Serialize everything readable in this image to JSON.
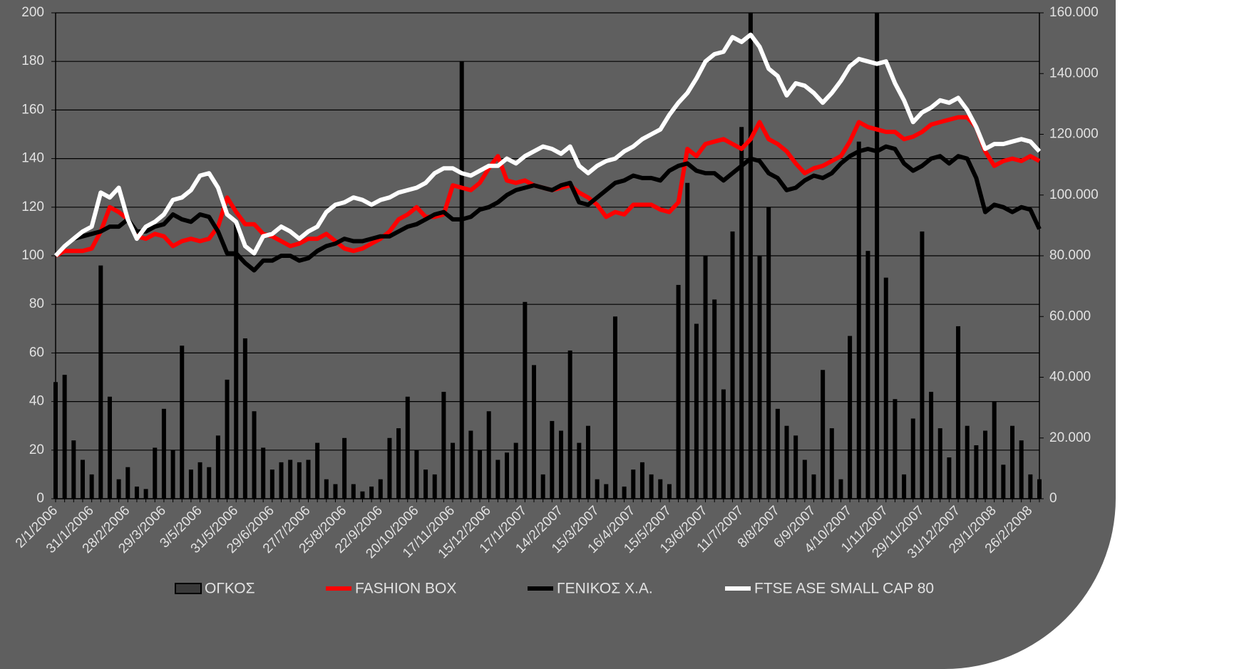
{
  "chart_data": {
    "type": "combo",
    "categories": [
      "2/1/2006",
      null,
      null,
      null,
      "31/1/2006",
      null,
      null,
      null,
      "28/2/2006",
      null,
      null,
      null,
      "29/3/2006",
      null,
      null,
      null,
      "3/5/2006",
      null,
      null,
      null,
      "31/5/2006",
      null,
      null,
      null,
      "29/6/2006",
      null,
      null,
      null,
      "27/7/2006",
      null,
      null,
      null,
      "25/8/2006",
      null,
      null,
      null,
      "22/9/2006",
      null,
      null,
      null,
      "20/10/2006",
      null,
      null,
      null,
      "17/11/2006",
      null,
      null,
      null,
      "15/12/2006",
      null,
      null,
      null,
      "17/1/2007",
      null,
      null,
      null,
      "14/2/2007",
      null,
      null,
      null,
      "15/3/2007",
      null,
      null,
      null,
      "16/4/2007",
      null,
      null,
      null,
      "15/5/2007",
      null,
      null,
      null,
      "13/6/2007",
      null,
      null,
      null,
      "11/7/2007",
      null,
      null,
      null,
      "8/8/2007",
      null,
      null,
      null,
      "6/9/2007",
      null,
      null,
      null,
      "4/10/2007",
      null,
      null,
      null,
      "1/11/2007",
      null,
      null,
      null,
      "29/11/2007",
      null,
      null,
      null,
      "31/12/2007",
      null,
      null,
      null,
      "29/1/2008",
      null,
      null,
      null,
      "26/2/2008",
      null
    ],
    "series": [
      {
        "name": "ΟΓΚΟΣ",
        "type": "bar",
        "axis": "y2",
        "color": "#000000",
        "values": [
          38400,
          40800,
          19200,
          12800,
          8000,
          76800,
          33600,
          6400,
          10400,
          4000,
          3200,
          16800,
          29600,
          16000,
          50400,
          9600,
          12000,
          10400,
          20800,
          39200,
          90400,
          52800,
          28800,
          16800,
          9600,
          12000,
          12800,
          12000,
          12800,
          18400,
          6400,
          4800,
          20000,
          4800,
          2400,
          4000,
          6400,
          20000,
          23200,
          33600,
          16000,
          9600,
          8000,
          35200,
          18400,
          144000,
          22400,
          16000,
          28800,
          12800,
          15200,
          18400,
          64800,
          44000,
          8000,
          25600,
          22400,
          48800,
          18400,
          24000,
          6400,
          4800,
          60000,
          4000,
          9600,
          12000,
          8000,
          6400,
          4800,
          70400,
          104000,
          57600,
          80000,
          65600,
          36000,
          88000,
          122400,
          160000,
          80000,
          96000,
          29600,
          24000,
          20800,
          12800,
          8000,
          42400,
          23200,
          6400,
          53600,
          117600,
          81600,
          160000,
          72800,
          32800,
          8000,
          26400,
          88000,
          35200,
          23200,
          13600,
          56800,
          24000,
          17600,
          22400,
          32000,
          11200,
          24000,
          19200,
          8000,
          6400
        ]
      },
      {
        "name": "FASHION BOX",
        "type": "line",
        "color": "#ff0000",
        "values": [
          100,
          102,
          102,
          102,
          103,
          110,
          120,
          118,
          115,
          108,
          107,
          109,
          108,
          104,
          106,
          107,
          106,
          107,
          112,
          124,
          118,
          113,
          113,
          109,
          108,
          106,
          104,
          105,
          107,
          107,
          109,
          106,
          103,
          102,
          103,
          105,
          107,
          110,
          115,
          117,
          120,
          116,
          116,
          117,
          129,
          128,
          127,
          130,
          136,
          141,
          131,
          130,
          131,
          129,
          128,
          127,
          128,
          129,
          126,
          124,
          121,
          116,
          118,
          117,
          121,
          121,
          121,
          119,
          118,
          122,
          144,
          141,
          146,
          147,
          148,
          146,
          144,
          148,
          155,
          148,
          146,
          143,
          138,
          134,
          136,
          137,
          139,
          141,
          147,
          155,
          153,
          152,
          151,
          151,
          148,
          149,
          151,
          154,
          155,
          156,
          157,
          157,
          153,
          143,
          137,
          139,
          140,
          139,
          141,
          139
        ]
      },
      {
        "name": "ΓΕΝΙΚΟΣ Χ.Α.",
        "type": "line",
        "color": "#000000",
        "values": [
          100,
          104,
          107,
          108,
          109,
          110,
          112,
          112,
          115,
          110,
          110,
          112,
          113,
          117,
          115,
          114,
          117,
          116,
          110,
          101,
          101,
          97,
          94,
          98,
          98,
          100,
          100,
          98,
          99,
          102,
          104,
          105,
          107,
          106,
          106,
          107,
          108,
          108,
          110,
          112,
          113,
          115,
          117,
          118,
          115,
          115,
          116,
          119,
          120,
          122,
          125,
          127,
          128,
          129,
          128,
          127,
          129,
          130,
          122,
          121,
          124,
          127,
          130,
          131,
          133,
          132,
          132,
          131,
          135,
          137,
          138,
          135,
          134,
          134,
          131,
          134,
          137,
          140,
          139,
          134,
          132,
          127,
          128,
          131,
          133,
          132,
          134,
          138,
          141,
          143,
          144,
          143,
          145,
          144,
          138,
          135,
          137,
          140,
          141,
          138,
          141,
          140,
          132,
          118,
          121,
          120,
          118,
          120,
          119,
          111
        ]
      },
      {
        "name": "FTSE ASE SMALL CAP 80",
        "type": "line",
        "color": "#ffffff",
        "values": [
          100,
          104,
          107,
          110,
          112,
          126,
          124,
          128,
          115,
          107,
          112,
          114,
          117,
          123,
          124,
          127,
          133,
          134,
          128,
          117,
          114,
          104,
          101,
          108,
          109,
          112,
          110,
          107,
          110,
          112,
          118,
          121,
          122,
          124,
          123,
          121,
          123,
          124,
          126,
          127,
          128,
          130,
          134,
          136,
          136,
          134,
          133,
          135,
          137,
          137,
          140,
          138,
          141,
          143,
          145,
          144,
          142,
          145,
          137,
          134,
          137,
          139,
          140,
          143,
          145,
          148,
          150,
          152,
          158,
          163,
          167,
          173,
          180,
          183,
          184,
          190,
          188,
          191,
          186,
          177,
          174,
          166,
          171,
          170,
          167,
          163,
          167,
          172,
          178,
          181,
          180,
          179,
          180,
          171,
          164,
          155,
          159,
          161,
          164,
          163,
          165,
          160,
          153,
          144,
          146,
          146,
          147,
          148,
          147,
          143
        ]
      }
    ],
    "ylim": [
      0,
      200
    ],
    "yticks": [
      0,
      20,
      40,
      60,
      80,
      100,
      120,
      140,
      160,
      180,
      200
    ],
    "y2lim": [
      0,
      160000
    ],
    "y2ticks": [
      0,
      {
        "value": 20000,
        "label": "20.000"
      },
      {
        "value": 40000,
        "label": "40.000"
      },
      {
        "value": 60000,
        "label": "60.000"
      },
      {
        "value": 80000,
        "label": "80.000"
      },
      {
        "value": 100000,
        "label": "100.000"
      },
      {
        "value": 120000,
        "label": "120.000"
      },
      {
        "value": 140000,
        "label": "140.000"
      },
      {
        "value": 160000,
        "label": "160.000"
      }
    ],
    "grid": true,
    "legend": "bottom"
  }
}
